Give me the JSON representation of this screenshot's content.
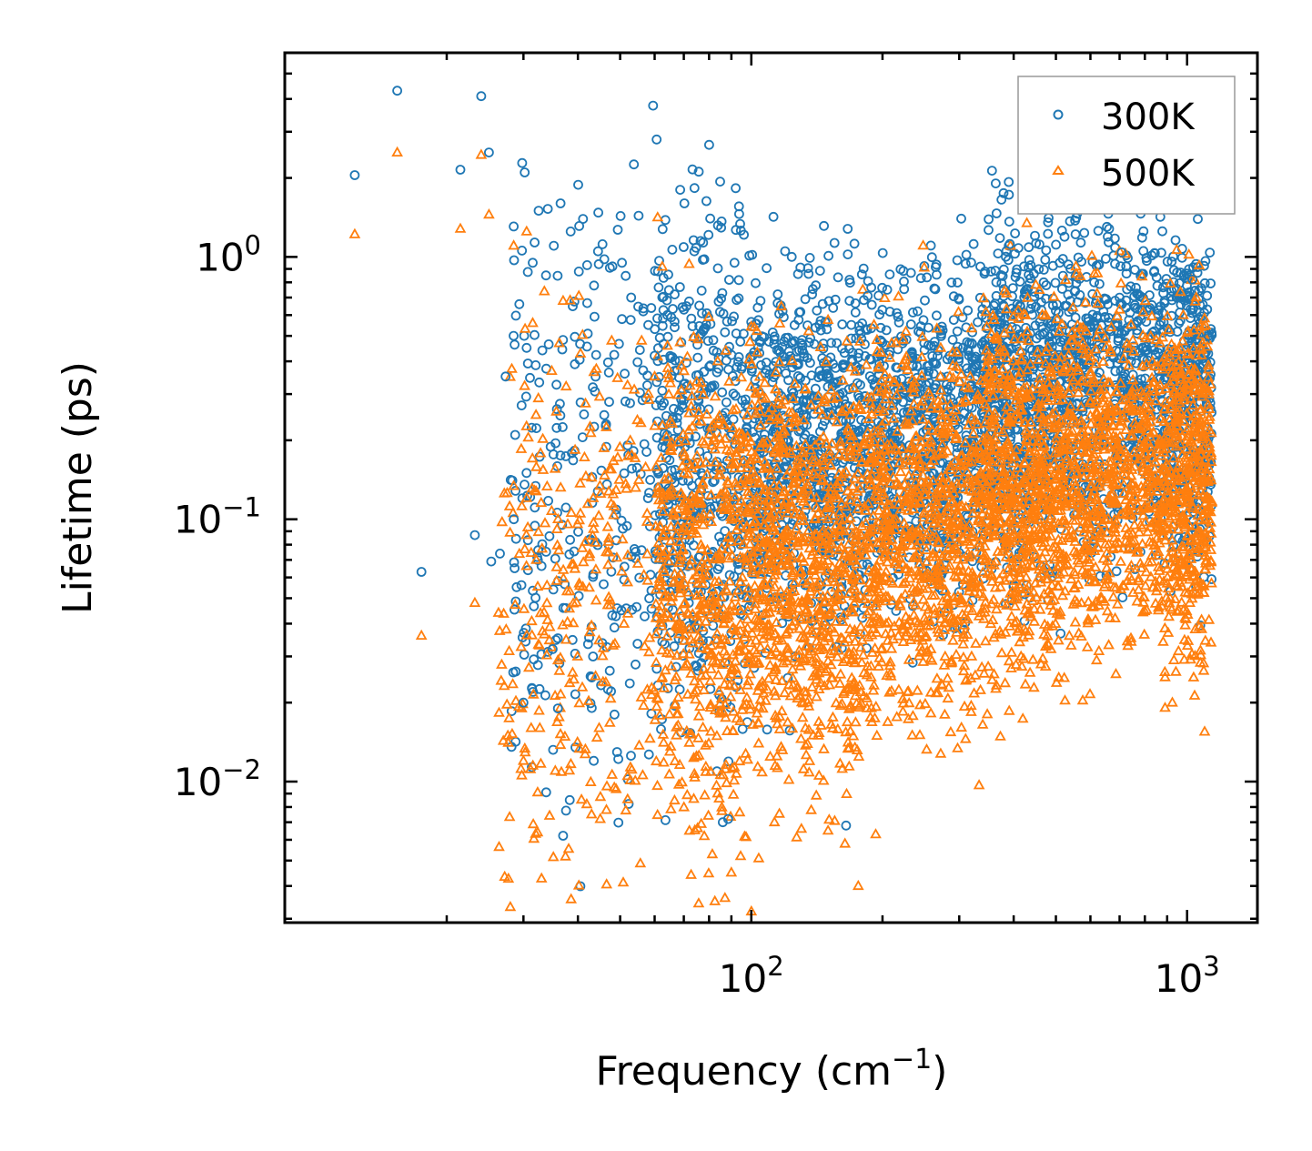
{
  "chart_data": {
    "type": "scatter",
    "title": "",
    "xlabel": "Frequency (cm",
    "xlabel_sup": "−1",
    "xlabel_suffix": ")",
    "ylabel": "Lifetime (ps)",
    "xscale": "log",
    "yscale": "log",
    "xlim": [
      8.5,
      1450
    ],
    "ylim": [
      0.0029,
      6.0
    ],
    "x_ticks": [
      {
        "value": 100,
        "base": "10",
        "exp": "2"
      },
      {
        "value": 1000,
        "base": "10",
        "exp": "3"
      }
    ],
    "y_ticks": [
      {
        "value": 1,
        "base": "10",
        "exp": "0"
      },
      {
        "value": 0.1,
        "base": "10",
        "exp": "−1"
      },
      {
        "value": 0.01,
        "base": "10",
        "exp": "−2"
      }
    ],
    "legend_position": "top-right",
    "series": [
      {
        "name": "300K",
        "color": "#1f77b4",
        "marker": "circle-open",
        "points": [
          [
            12.3,
            2.05
          ],
          [
            15.4,
            4.3
          ],
          [
            17.5,
            0.063
          ],
          [
            21.5,
            2.15
          ],
          [
            23.2,
            0.087
          ],
          [
            24.0,
            4.1
          ],
          [
            25.0,
            2.5
          ],
          [
            25.3,
            0.069
          ],
          [
            26.5,
            0.074
          ],
          [
            27.3,
            0.35
          ],
          [
            28.5,
            0.1
          ],
          [
            29.8,
            2.28
          ],
          [
            30.2,
            2.1
          ],
          [
            30.0,
            0.02
          ],
          [
            30.5,
            0.45
          ],
          [
            31.5,
            0.95
          ],
          [
            32.5,
            1.5
          ],
          [
            33.8,
            0.85
          ],
          [
            35.0,
            0.032
          ],
          [
            36.0,
            0.019
          ],
          [
            36.5,
            1.6
          ],
          [
            38.5,
            1.25
          ],
          [
            40.2,
            0.88
          ],
          [
            42.0,
            0.93
          ],
          [
            43.5,
            0.012
          ],
          [
            44.5,
            1.05
          ],
          [
            46.0,
            0.98
          ],
          [
            48.0,
            0.92
          ],
          [
            50.5,
            0.95
          ],
          [
            53.0,
            0.7
          ],
          [
            56.5,
            0.62
          ],
          [
            58.0,
            0.55
          ],
          [
            60.0,
            0.42
          ],
          [
            70.2,
            1.6
          ],
          [
            74.0,
            1.05
          ],
          [
            76.5,
            1.15
          ],
          [
            78.0,
            0.98
          ],
          [
            80.5,
            1.4
          ],
          [
            86.0,
            0.007
          ],
          [
            88.5,
            0.0072
          ],
          [
            91.5,
            0.95
          ],
          [
            105.0,
            0.68
          ],
          [
            115.0,
            0.72
          ],
          [
            133.0,
            0.69
          ],
          [
            165.0,
            0.0068
          ],
          [
            168.0,
            0.68
          ],
          [
            185.0,
            0.71
          ],
          [
            205.0,
            0.75
          ],
          [
            245.0,
            0.83
          ],
          [
            297.0,
            0.52
          ],
          [
            355.0,
            0.88
          ],
          [
            372.0,
            1.18
          ],
          [
            392.0,
            1.12
          ],
          [
            475.0,
            0.78
          ],
          [
            510.0,
            0.95
          ],
          [
            560.0,
            1.55
          ],
          [
            612.0,
            0.8
          ],
          [
            708.0,
            1.04
          ],
          [
            725.0,
            0.92
          ],
          [
            922.0,
            0.96
          ],
          [
            1028.0,
            0.82
          ],
          [
            1120.0,
            0.5
          ]
        ]
      },
      {
        "name": "500K",
        "color": "#ff7f0e",
        "marker": "triangle-open",
        "points": [
          [
            12.3,
            1.22
          ],
          [
            15.4,
            2.5
          ],
          [
            17.5,
            0.036
          ],
          [
            21.5,
            1.28
          ],
          [
            23.2,
            0.048
          ],
          [
            24.0,
            2.45
          ],
          [
            25.0,
            1.45
          ],
          [
            26.3,
            0.044
          ],
          [
            30.0,
            0.012
          ],
          [
            30.5,
            1.25
          ],
          [
            31.5,
            0.56
          ],
          [
            33.5,
            0.74
          ],
          [
            35.5,
            0.011
          ],
          [
            36.0,
            0.029
          ],
          [
            37.0,
            0.68
          ],
          [
            40.2,
            0.71
          ],
          [
            43.0,
            0.0075
          ],
          [
            45.0,
            0.0072
          ],
          [
            46.5,
            0.0078
          ],
          [
            48.5,
            0.0095
          ],
          [
            52.0,
            0.0105
          ],
          [
            56.0,
            0.48
          ],
          [
            60.0,
            0.35
          ],
          [
            65.0,
            0.013
          ],
          [
            72.0,
            0.94
          ],
          [
            78.0,
            0.0062
          ],
          [
            82.5,
            0.0035
          ],
          [
            87.0,
            0.0036
          ],
          [
            90.0,
            0.0045
          ],
          [
            94.5,
            0.0052
          ],
          [
            100.0,
            0.0032
          ],
          [
            104.0,
            0.0051
          ],
          [
            113.0,
            0.007
          ],
          [
            150.0,
            0.0065
          ],
          [
            164.0,
            0.0058
          ],
          [
            176.0,
            0.004
          ],
          [
            193.0,
            0.0063
          ],
          [
            234.0,
            0.015
          ],
          [
            278.0,
            0.018
          ],
          [
            395.0,
            0.027
          ],
          [
            487.0,
            0.032
          ],
          [
            556.0,
            0.92
          ],
          [
            620.0,
            0.029
          ],
          [
            700.0,
            0.63
          ],
          [
            925.0,
            0.02
          ],
          [
            940.0,
            0.43
          ],
          [
            1050.0,
            0.33
          ]
        ]
      }
    ]
  }
}
